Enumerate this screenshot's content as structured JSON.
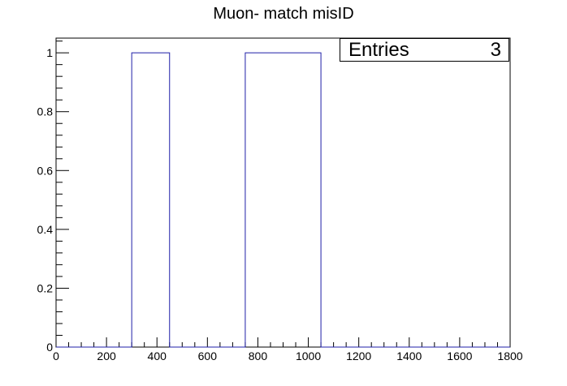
{
  "chart_data": {
    "type": "histogram",
    "title": "Muon- match misID",
    "xlabel": "",
    "ylabel": "",
    "xlim": [
      0,
      1800
    ],
    "ylim": [
      0,
      1.05
    ],
    "xticks": [
      "0",
      "200",
      "400",
      "600",
      "800",
      "1000",
      "1200",
      "1400",
      "1600",
      "1800"
    ],
    "yticks": [
      "0",
      "0.2",
      "0.4",
      "0.6",
      "0.8",
      "1"
    ],
    "bins": [
      {
        "x_low": 300,
        "x_high": 450,
        "value": 1
      },
      {
        "x_low": 750,
        "x_high": 1050,
        "value": 1
      }
    ],
    "line_color": "#1f1fa8",
    "stats_box": {
      "label": "Entries",
      "value": "3"
    },
    "grid": false
  }
}
